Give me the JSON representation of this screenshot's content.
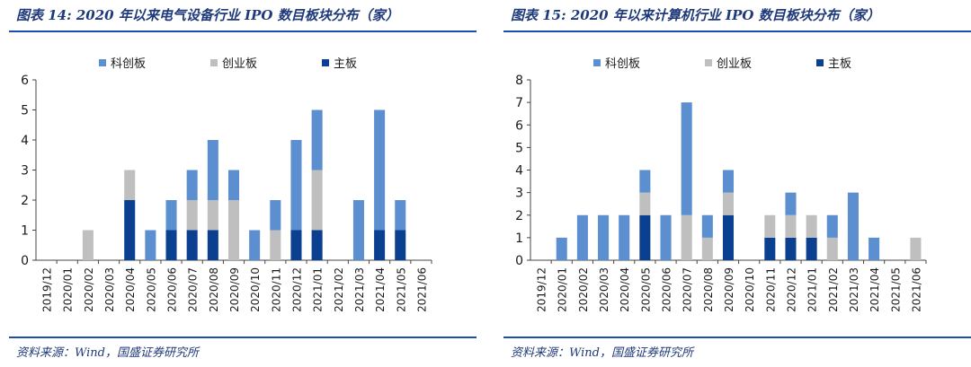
{
  "colors": {
    "kechuang": "#5b8fcf",
    "chuangye": "#bfbfbf",
    "zhuban": "#0b3f8f",
    "accent": "#1f3a7a"
  },
  "chart_data": [
    {
      "type": "bar",
      "stacked": true,
      "title": "图表 14:  2020 年以来电气设备行业 IPO 数目板块分布（家）",
      "source": "资料来源：Wind，国盛证券研究所",
      "categories": [
        "2019/12",
        "2020/01",
        "2020/02",
        "2020/03",
        "2020/04",
        "2020/05",
        "2020/06",
        "2020/07",
        "2020/08",
        "2020/09",
        "2020/10",
        "2020/11",
        "2020/12",
        "2021/01",
        "2021/02",
        "2021/03",
        "2021/04",
        "2021/05",
        "2021/06"
      ],
      "series": [
        {
          "name": "主板",
          "color": "#0b3f8f",
          "values": [
            0,
            0,
            0,
            0,
            2,
            0,
            1,
            1,
            1,
            0,
            0,
            0,
            1,
            1,
            0,
            0,
            1,
            1,
            0
          ]
        },
        {
          "name": "创业板",
          "color": "#bfbfbf",
          "values": [
            0,
            0,
            1,
            0,
            1,
            0,
            0,
            1,
            1,
            2,
            0,
            1,
            0,
            2,
            0,
            0,
            0,
            0,
            0
          ]
        },
        {
          "name": "科创板",
          "color": "#5b8fcf",
          "values": [
            0,
            0,
            0,
            0,
            0,
            1,
            1,
            1,
            2,
            1,
            1,
            1,
            3,
            2,
            0,
            2,
            4,
            1,
            0
          ]
        }
      ],
      "legend_order": [
        "科创板",
        "创业板",
        "主板"
      ],
      "ylim": [
        0,
        6
      ],
      "yticks": [
        "0",
        "1",
        "2",
        "3",
        "4",
        "5",
        "6"
      ],
      "legend": "top-center",
      "grid": false
    },
    {
      "type": "bar",
      "stacked": true,
      "title": "图表 15:  2020 年以来计算机行业 IPO 数目板块分布（家）",
      "source": "资料来源：Wind，国盛证券研究所",
      "categories": [
        "2019/12",
        "2020/01",
        "2020/02",
        "2020/03",
        "2020/04",
        "2020/05",
        "2020/06",
        "2020/07",
        "2020/08",
        "2020/09",
        "2020/10",
        "2020/11",
        "2020/12",
        "2021/01",
        "2021/02",
        "2021/03",
        "2021/04",
        "2021/05",
        "2021/06"
      ],
      "series": [
        {
          "name": "主板",
          "color": "#0b3f8f",
          "values": [
            0,
            0,
            0,
            0,
            0,
            2,
            0,
            0,
            0,
            2,
            0,
            1,
            1,
            1,
            0,
            0,
            0,
            0,
            0
          ]
        },
        {
          "name": "创业板",
          "color": "#bfbfbf",
          "values": [
            0,
            0,
            0,
            0,
            0,
            1,
            0,
            2,
            1,
            1,
            0,
            1,
            1,
            1,
            1,
            0,
            0,
            0,
            1
          ]
        },
        {
          "name": "科创板",
          "color": "#5b8fcf",
          "values": [
            0,
            1,
            2,
            2,
            2,
            1,
            2,
            5,
            1,
            1,
            0,
            0,
            1,
            0,
            1,
            3,
            1,
            0,
            0
          ]
        }
      ],
      "legend_order": [
        "科创板",
        "创业板",
        "主板"
      ],
      "ylim": [
        0,
        8
      ],
      "yticks": [
        "0",
        "1",
        "2",
        "3",
        "4",
        "5",
        "6",
        "7",
        "8"
      ],
      "legend": "top-center",
      "grid": false
    }
  ]
}
